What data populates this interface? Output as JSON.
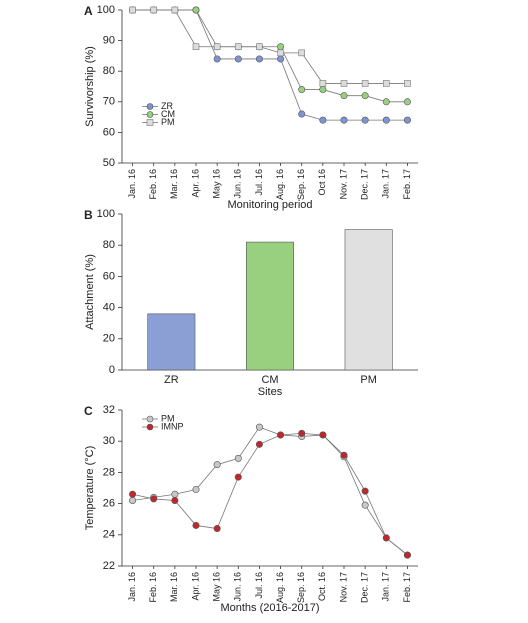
{
  "chart_data": [
    {
      "type": "line",
      "panel": "A",
      "ylabel": "Survivorship (%)",
      "xlabel": "Monitoring period",
      "categories": [
        "Jan. 16",
        "Feb. 16",
        "Mar. 16",
        "Apr. 16",
        "May 16",
        "Jun. 16",
        "Jul. 16",
        "Aug. 16",
        "Sep. 16",
        "Oct 16",
        "Nov. 17",
        "Dec. 17",
        "Jan. 17",
        "Feb. 17"
      ],
      "series": [
        {
          "name": "ZR",
          "color": "#7f93d3",
          "marker": "circle",
          "values": [
            100,
            100,
            100,
            100,
            84,
            84,
            84,
            84,
            66,
            64,
            64,
            64,
            64,
            64
          ]
        },
        {
          "name": "CM",
          "color": "#97d07f",
          "marker": "circle",
          "values": [
            100,
            100,
            100,
            100,
            88,
            88,
            88,
            88,
            74,
            74,
            72,
            72,
            70,
            70
          ]
        },
        {
          "name": "PM",
          "color": "#dcdcdc",
          "marker": "square",
          "values": [
            100,
            100,
            100,
            88,
            88,
            88,
            88,
            86,
            86,
            76,
            76,
            76,
            76,
            76
          ]
        }
      ],
      "ylim": [
        50,
        100
      ],
      "yticks": [
        50,
        60,
        70,
        80,
        90,
        100
      ],
      "legend": "center-left"
    },
    {
      "type": "bar",
      "panel": "B",
      "ylabel": "Attachment (%)",
      "xlabel": "Sites",
      "categories": [
        "ZR",
        "CM",
        "PM"
      ],
      "values": [
        36,
        82,
        90
      ],
      "colors": [
        "#8b9fd4",
        "#98d080",
        "#e0e0e0"
      ],
      "ylim": [
        0,
        100
      ],
      "yticks": [
        0,
        20,
        40,
        60,
        80,
        100
      ]
    },
    {
      "type": "line",
      "panel": "C",
      "ylabel": "Temperature (°C)",
      "xlabel": "Months (2016-2017)",
      "categories": [
        "Jan. 16",
        "Feb. 16",
        "Mar. 16",
        "Apr. 16",
        "May 16",
        "Jun. 16",
        "Jul. 16",
        "Aug. 16",
        "Sep. 16",
        "Oct. 16",
        "Nov. 17",
        "Dec. 17",
        "Jan. 17",
        "Feb. 17"
      ],
      "series": [
        {
          "name": "PM",
          "color": "#c8c8c8",
          "marker": "circle",
          "values": [
            26.2,
            26.4,
            26.6,
            26.9,
            28.5,
            28.9,
            30.9,
            30.4,
            30.3,
            30.4,
            29.0,
            25.9,
            23.8,
            22.7
          ]
        },
        {
          "name": "IMNP",
          "color": "#c0272d",
          "marker": "circle",
          "values": [
            26.6,
            26.3,
            26.2,
            24.6,
            24.4,
            27.7,
            29.8,
            30.4,
            30.5,
            30.4,
            29.1,
            26.8,
            23.8,
            22.7
          ]
        }
      ],
      "ylim": [
        22,
        32
      ],
      "yticks": [
        22,
        24,
        26,
        28,
        30,
        32
      ],
      "legend": "upper-left"
    }
  ]
}
